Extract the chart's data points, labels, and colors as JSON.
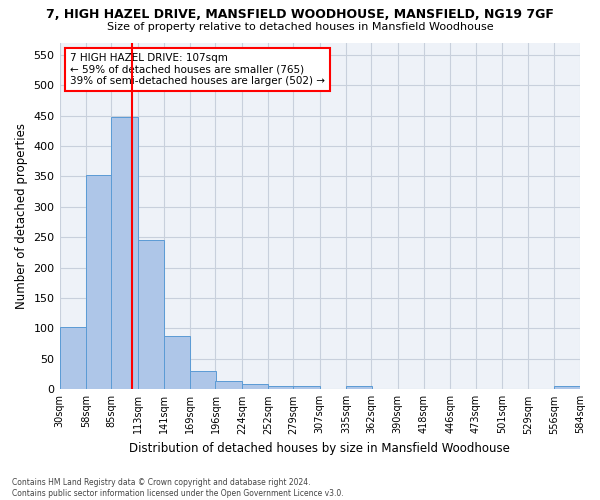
{
  "title1": "7, HIGH HAZEL DRIVE, MANSFIELD WOODHOUSE, MANSFIELD, NG19 7GF",
  "title2": "Size of property relative to detached houses in Mansfield Woodhouse",
  "xlabel": "Distribution of detached houses by size in Mansfield Woodhouse",
  "ylabel": "Number of detached properties",
  "footnote": "Contains HM Land Registry data © Crown copyright and database right 2024.\nContains public sector information licensed under the Open Government Licence v3.0.",
  "bin_edges": [
    30,
    58,
    85,
    113,
    141,
    169,
    196,
    224,
    252,
    279,
    307,
    335,
    362,
    390,
    418,
    446,
    473,
    501,
    529,
    556,
    584
  ],
  "bar_heights": [
    103,
    353,
    447,
    245,
    88,
    30,
    13,
    9,
    5,
    5,
    0,
    5,
    0,
    0,
    0,
    0,
    0,
    0,
    0,
    5
  ],
  "bar_color": "#aec6e8",
  "bar_edgecolor": "#5b9bd5",
  "grid_color": "#c8d0dc",
  "bg_color": "#eef2f8",
  "red_line_x": 107,
  "annotation_text": "7 HIGH HAZEL DRIVE: 107sqm\n← 59% of detached houses are smaller (765)\n39% of semi-detached houses are larger (502) →",
  "ylim": [
    0,
    570
  ],
  "yticks": [
    0,
    50,
    100,
    150,
    200,
    250,
    300,
    350,
    400,
    450,
    500,
    550
  ]
}
